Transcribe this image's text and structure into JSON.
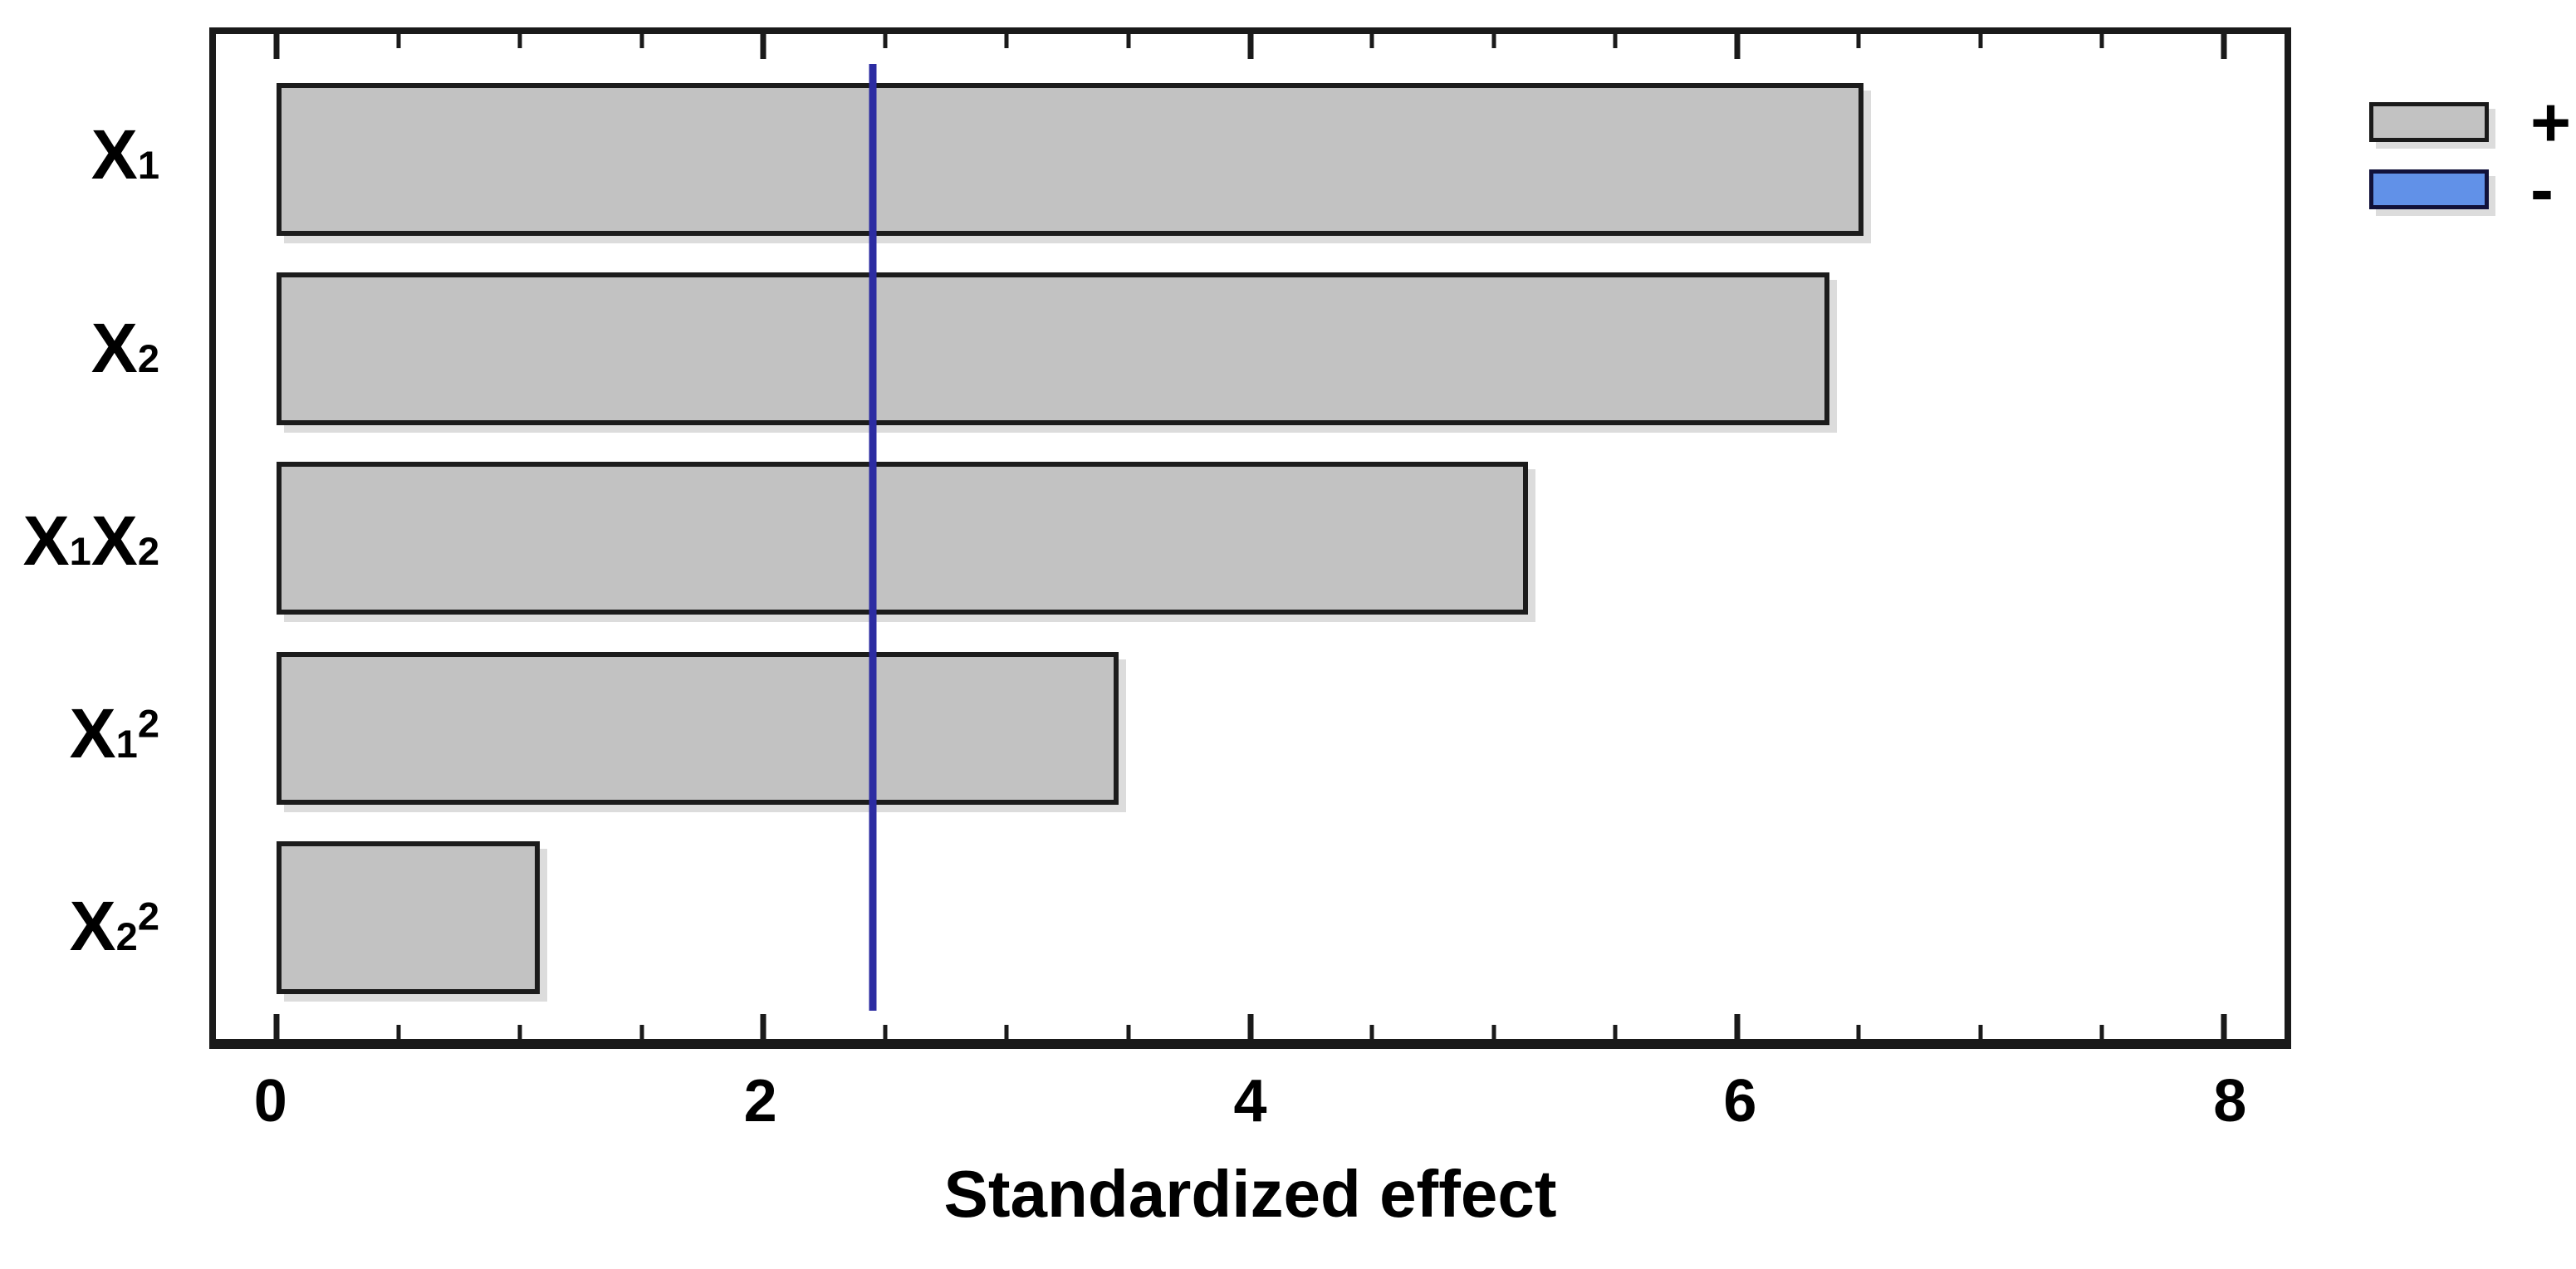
{
  "chart_data": {
    "type": "bar",
    "orientation": "horizontal",
    "title": "",
    "xlabel": "Standardized effect",
    "ylabel": "",
    "categories": [
      "X1",
      "X2",
      "X1X2",
      "X1^2",
      "X2^2"
    ],
    "category_parts": [
      [
        {
          "t": "X",
          "s": "n"
        },
        {
          "t": "1",
          "s": "sub"
        }
      ],
      [
        {
          "t": "X",
          "s": "n"
        },
        {
          "t": "2",
          "s": "sub"
        }
      ],
      [
        {
          "t": "X",
          "s": "n"
        },
        {
          "t": "1",
          "s": "sub"
        },
        {
          "t": "X",
          "s": "n"
        },
        {
          "t": "2",
          "s": "sub"
        }
      ],
      [
        {
          "t": "X",
          "s": "n"
        },
        {
          "t": "1",
          "s": "sub"
        },
        {
          "t": "2",
          "s": "sup"
        }
      ],
      [
        {
          "t": "X",
          "s": "n"
        },
        {
          "t": "2",
          "s": "sub"
        },
        {
          "t": "2",
          "s": "sup"
        }
      ]
    ],
    "values": [
      6.52,
      6.38,
      5.14,
      3.46,
      1.08
    ],
    "reference_line": 2.45,
    "xlim": [
      -0.25,
      8.25
    ],
    "xticks": [
      0,
      2,
      4,
      6,
      8
    ],
    "minor_tick_step": 0.5,
    "grid": false,
    "bar_color": "#c2c2c2",
    "bar_border_color": "#1c1c1c",
    "reference_line_color": "#2c2ca2",
    "legend": {
      "position": "top-right",
      "entries": [
        {
          "label": "+",
          "color": "#c2c2c2",
          "border": "#1a1a1a"
        },
        {
          "label": "-",
          "color": "#6191e8",
          "border": "#12123a"
        }
      ]
    }
  }
}
